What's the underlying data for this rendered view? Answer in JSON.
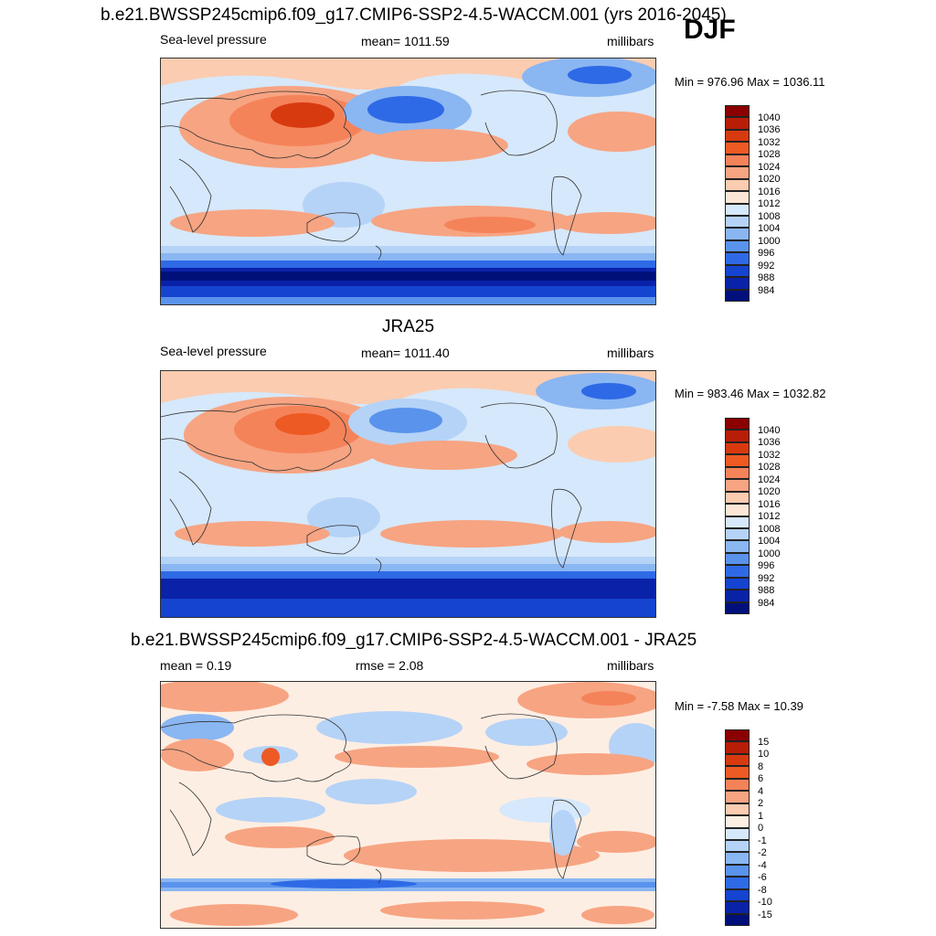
{
  "season": "DJF",
  "panels": [
    {
      "title": "b.e21.BWSSP245cmip6.f09_g17.CMIP6-SSP2-4.5-WACCM.001 (yrs 2016-2045)",
      "left_label": "Sea-level pressure",
      "center_label": "mean= 1011.59",
      "right_label": "millibars",
      "minmax": "Min = 976.96 Max = 1036.11",
      "colorbar_labels": [
        "1040",
        "1036",
        "1032",
        "1028",
        "1024",
        "1020",
        "1016",
        "1012",
        "1008",
        "1004",
        "1000",
        "996",
        "992",
        "988",
        "984"
      ]
    },
    {
      "title": "JRA25",
      "left_label": "Sea-level pressure",
      "center_label": "mean= 1011.40",
      "right_label": "millibars",
      "minmax": "Min = 983.46 Max = 1032.82",
      "colorbar_labels": [
        "1040",
        "1036",
        "1032",
        "1028",
        "1024",
        "1020",
        "1016",
        "1012",
        "1008",
        "1004",
        "1000",
        "996",
        "992",
        "988",
        "984"
      ]
    },
    {
      "title": "b.e21.BWSSP245cmip6.f09_g17.CMIP6-SSP2-4.5-WACCM.001 - JRA25",
      "left_label": "mean =   0.19",
      "center_label": "rmse =   2.08",
      "right_label": "millibars",
      "minmax": "Min =  -7.58 Max =  10.39",
      "colorbar_labels": [
        "15",
        "10",
        "8",
        "6",
        "4",
        "2",
        "1",
        "0",
        "-1",
        "-2",
        "-4",
        "-6",
        "-8",
        "-10",
        "-15"
      ]
    }
  ],
  "colors": {
    "abs_scale": [
      "#8b0000",
      "#b81d08",
      "#d83a10",
      "#ee5a24",
      "#f5835a",
      "#f7a482",
      "#fbccb0",
      "#fde6d5",
      "#d6e8fb",
      "#b5d3f7",
      "#8ab6f2",
      "#5a93ec",
      "#2f6ae6",
      "#1544d0",
      "#0a22a8",
      "#00107a"
    ],
    "diff_scale": [
      "#8b0000",
      "#b81d08",
      "#d83a10",
      "#ee5a24",
      "#f5835a",
      "#f7a482",
      "#fbccb0",
      "#fdeee3",
      "#d6e8fb",
      "#b5d3f7",
      "#8ab6f2",
      "#5a93ec",
      "#2f6ae6",
      "#1544d0",
      "#0a22a8",
      "#00107a"
    ]
  }
}
